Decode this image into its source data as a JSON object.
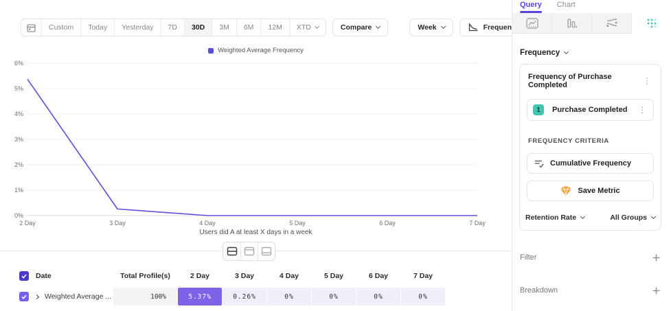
{
  "colors": {
    "accent_purple": "#5b4edb",
    "cell_highlight": "#7e63e8",
    "cell_light": "#f1edfb",
    "teal": "#46c4b2",
    "gem_orange": "#f5a83c",
    "tab_active": "#5b44e0"
  },
  "toolbar": {
    "ranges": [
      "Custom",
      "Today",
      "Yesterday",
      "7D",
      "30D",
      "3M",
      "6M",
      "12M",
      "XTD"
    ],
    "active_range": "30D",
    "compare_label": "Compare",
    "interval_label": "Week",
    "chart_style_label": "Frequency Curve"
  },
  "chart_data": {
    "type": "line",
    "title": "",
    "categories": [
      "2 Day",
      "3 Day",
      "4 Day",
      "5 Day",
      "6 Day",
      "7 Day"
    ],
    "series": [
      {
        "name": "Weighted Average Frequency",
        "values": [
          5.37,
          0.26,
          0,
          0,
          0,
          0
        ],
        "color": "#5b4edb"
      }
    ],
    "xlabel": "Users did A at least X days in a week",
    "ylabel": "",
    "ylim": [
      0,
      6
    ],
    "y_tick_labels": [
      "0%",
      "1%",
      "2%",
      "3%",
      "4%",
      "5%",
      "6%"
    ],
    "grid": true,
    "legend_position": "top-center"
  },
  "table": {
    "headers": [
      "Date",
      "Total Profile(s)",
      "2 Day",
      "3 Day",
      "4 Day",
      "5 Day",
      "6 Day",
      "7 Day"
    ],
    "rows": [
      {
        "name": "Weighted Average ...",
        "total": "100%",
        "values": [
          "5.37%",
          "0.26%",
          "0%",
          "0%",
          "0%",
          "0%"
        ],
        "checked": true
      }
    ]
  },
  "sidebar": {
    "tabs": [
      {
        "label": "Query",
        "active": true
      },
      {
        "label": "Chart",
        "active": false
      }
    ],
    "section_label": "Frequency",
    "metric_card": {
      "title": "Frequency of Purchase Completed",
      "event": {
        "index": "1",
        "name": "Purchase Completed"
      },
      "criteria_label": "FREQUENCY CRITERIA",
      "criteria_value": "Cumulative Frequency",
      "save_button": "Save Metric",
      "measure_label": "Retention Rate",
      "groups_label": "All Groups"
    },
    "filter_label": "Filter",
    "breakdown_label": "Breakdown"
  }
}
